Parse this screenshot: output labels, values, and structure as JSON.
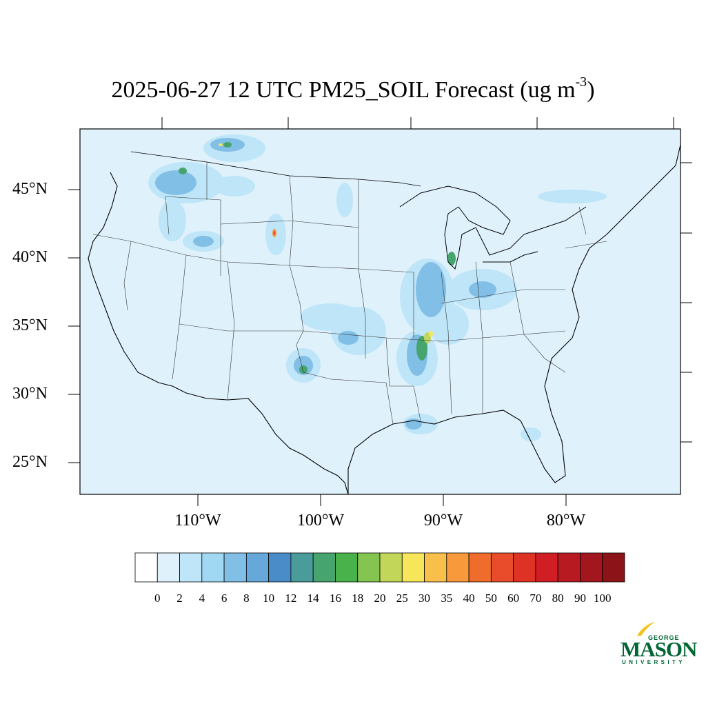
{
  "title": {
    "main": "2025-06-27 12 UTC PM25_SOIL Forecast (ug m",
    "exponent": "-3",
    "close": ")"
  },
  "latitude_labels": [
    "45°N",
    "40°N",
    "35°N",
    "30°N",
    "25°N"
  ],
  "longitude_labels": [
    "110°W",
    "100°W",
    "90°W",
    "80°W"
  ],
  "colorbar": {
    "labels": [
      "0",
      "2",
      "4",
      "6",
      "8",
      "10",
      "12",
      "14",
      "16",
      "18",
      "20",
      "25",
      "30",
      "35",
      "40",
      "50",
      "60",
      "70",
      "80",
      "90",
      "100"
    ],
    "colors": [
      "#ffffff",
      "#dff1fb",
      "#bfe5f8",
      "#a0d8f4",
      "#82bfe6",
      "#66a8da",
      "#4a8cc8",
      "#4a9c9a",
      "#46a46e",
      "#4ab24a",
      "#84c450",
      "#c2d65a",
      "#f8e65a",
      "#f8c04a",
      "#f89a3c",
      "#f06c2c",
      "#e84c2a",
      "#de3224",
      "#d01e24",
      "#b81a22",
      "#a4161e",
      "#8c1418"
    ]
  },
  "map": {
    "background_color": "#dff1fb",
    "border_color": "#000000"
  },
  "logo": {
    "george": "GEORGE",
    "mason": "MASON",
    "university": "UNIVERSITY"
  }
}
